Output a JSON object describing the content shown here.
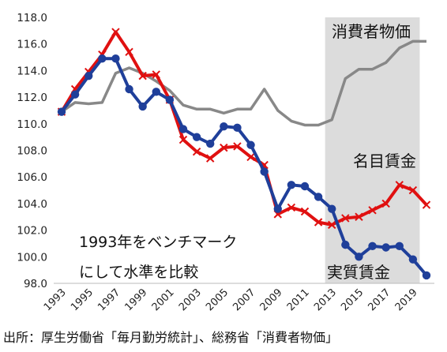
{
  "chart_data": {
    "type": "line",
    "xlabel": "",
    "ylabel": "",
    "ylim": [
      98.0,
      118.0
    ],
    "xlim": [
      1993,
      2020
    ],
    "grid": false,
    "legend": "none",
    "y_ticks": [
      "98.0",
      "100.0",
      "102.0",
      "104.0",
      "106.0",
      "108.0",
      "110.0",
      "112.0",
      "114.0",
      "116.0",
      "118.0"
    ],
    "x_ticks": [
      "1993",
      "1995",
      "1997",
      "1999",
      "2001",
      "2003",
      "2005",
      "2007",
      "2009",
      "2011",
      "2013",
      "2015",
      "2017",
      "2019"
    ],
    "shaded_region": {
      "from": 2012.5,
      "to": 2019.5,
      "color": "#dcdcdc"
    },
    "x": [
      1993,
      1994,
      1995,
      1996,
      1997,
      1998,
      1999,
      2000,
      2001,
      2002,
      2003,
      2004,
      2005,
      2006,
      2007,
      2008,
      2009,
      2010,
      2011,
      2012,
      2013,
      2014,
      2015,
      2016,
      2017,
      2018,
      2019,
      2020
    ],
    "series": [
      {
        "name": "消費者物価",
        "color": "#888888",
        "marker": "none",
        "values": [
          110.9,
          111.6,
          111.5,
          111.6,
          113.8,
          114.2,
          113.8,
          113.2,
          112.5,
          111.4,
          111.1,
          111.1,
          110.8,
          111.1,
          111.1,
          112.6,
          111.0,
          110.2,
          109.9,
          109.9,
          110.3,
          113.4,
          114.1,
          114.1,
          114.6,
          115.7,
          116.2,
          116.2
        ]
      },
      {
        "name": "名目賃金",
        "color": "#e01010",
        "marker": "x",
        "values": [
          110.9,
          112.6,
          113.9,
          115.2,
          116.9,
          115.4,
          113.6,
          113.7,
          111.8,
          108.8,
          107.9,
          107.4,
          108.2,
          108.3,
          107.5,
          106.9,
          103.2,
          103.7,
          103.4,
          102.6,
          102.4,
          102.9,
          103.0,
          103.5,
          104.0,
          105.4,
          105.0,
          103.9
        ]
      },
      {
        "name": "実質賃金",
        "color": "#1f3f9a",
        "marker": "circle",
        "values": [
          110.9,
          112.2,
          113.6,
          114.9,
          114.9,
          112.6,
          111.3,
          112.4,
          111.8,
          109.6,
          109.0,
          108.5,
          109.8,
          109.7,
          108.4,
          106.4,
          103.6,
          105.4,
          105.3,
          104.5,
          103.6,
          100.9,
          100.0,
          100.8,
          100.7,
          100.8,
          99.8,
          98.6
        ]
      }
    ],
    "annotations": {
      "line1": "1993年をベンチマーク",
      "line2": "にして水準を比較"
    }
  },
  "source_note": "出所：厚生労働省「毎月勤労統計」、総務省「消費者物価」"
}
